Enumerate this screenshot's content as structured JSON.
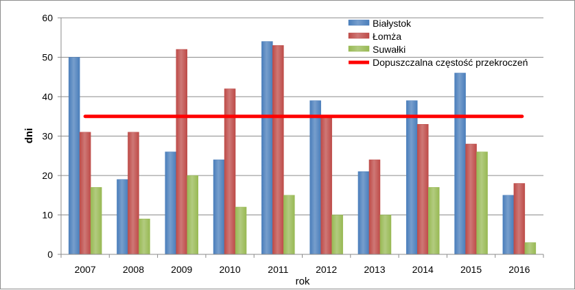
{
  "chart_data": {
    "type": "bar",
    "title": "",
    "xlabel": "rok",
    "ylabel": "dni",
    "categories": [
      "2007",
      "2008",
      "2009",
      "2010",
      "2011",
      "2012",
      "2013",
      "2014",
      "2015",
      "2016"
    ],
    "series": [
      {
        "name": "Białystok",
        "color": "#4a7ebb",
        "values": [
          50,
          19,
          26,
          24,
          54,
          39,
          21,
          39,
          46,
          15
        ]
      },
      {
        "name": "Łomża",
        "color": "#be4b48",
        "values": [
          31,
          31,
          52,
          42,
          53,
          35,
          24,
          33,
          28,
          18
        ]
      },
      {
        "name": "Suwałki",
        "color": "#98b954",
        "values": [
          17,
          9,
          20,
          12,
          15,
          10,
          10,
          17,
          26,
          3
        ]
      }
    ],
    "reference_line": {
      "name": "Dopuszczalna częstość przekroczeń",
      "value": 35,
      "color": "#ff0000"
    },
    "ylim": [
      0,
      60
    ],
    "yticks": [
      "0",
      "10",
      "20",
      "30",
      "40",
      "50",
      "60"
    ],
    "grid": true,
    "legend_position": "top-right"
  }
}
